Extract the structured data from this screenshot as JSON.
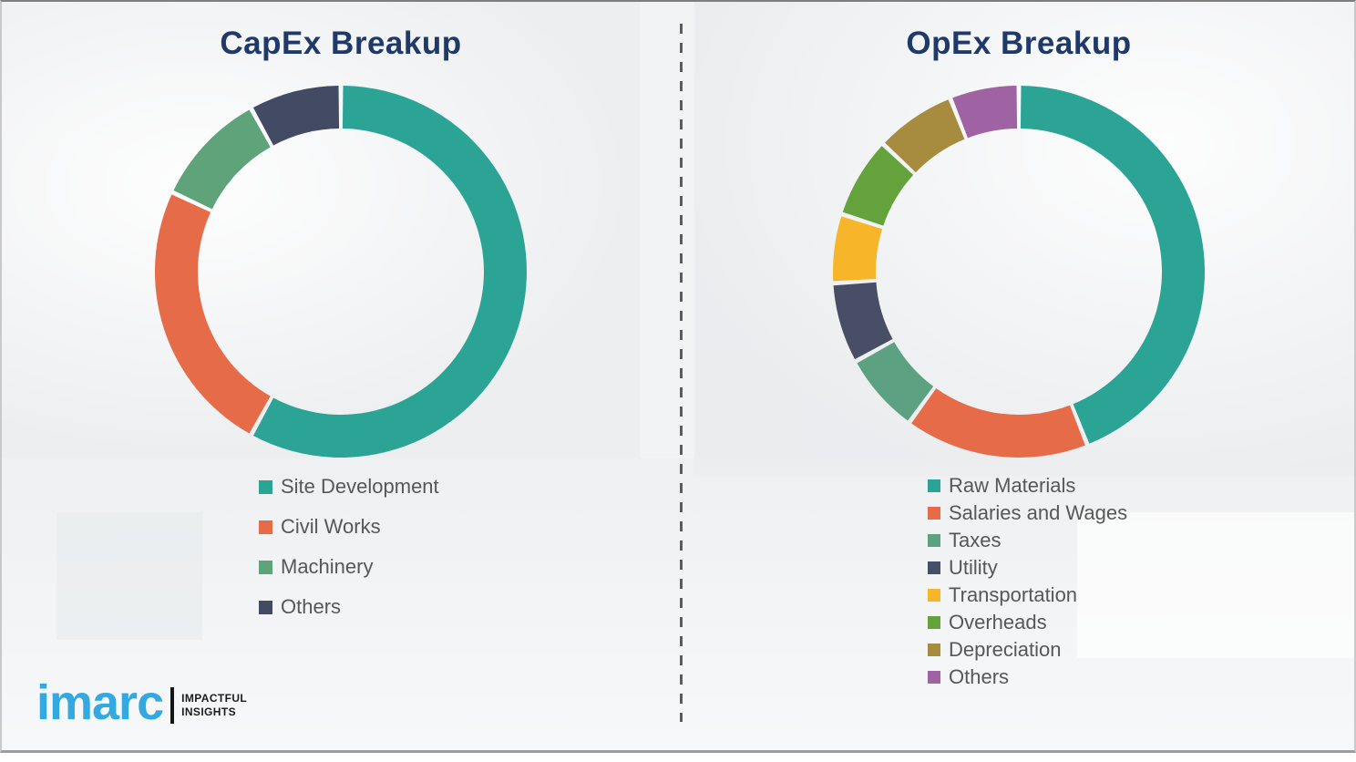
{
  "theme": {
    "title_color": "#1f3a68",
    "legend_text_color": "#575757",
    "divider_color": "#5c5c5c",
    "logo_blue": "#33a9e0"
  },
  "chart_data": [
    {
      "type": "pie",
      "subtype": "donut",
      "title": "CapEx Breakup",
      "legend_position": "bottom-left",
      "series": [
        {
          "name": "Site Development",
          "value": 58,
          "color": "#2ba496"
        },
        {
          "name": "Civil Works",
          "value": 24,
          "color": "#e66b48"
        },
        {
          "name": "Machinery",
          "value": 10,
          "color": "#5ea379"
        },
        {
          "name": "Others",
          "value": 8,
          "color": "#424a64"
        }
      ]
    },
    {
      "type": "pie",
      "subtype": "donut",
      "title": "OpEx Breakup",
      "legend_position": "bottom-left",
      "series": [
        {
          "name": "Raw Materials",
          "value": 44,
          "color": "#2ba496"
        },
        {
          "name": "Salaries and Wages",
          "value": 16,
          "color": "#e66b48"
        },
        {
          "name": "Taxes",
          "value": 7,
          "color": "#5ca181"
        },
        {
          "name": "Utility",
          "value": 7,
          "color": "#474e66"
        },
        {
          "name": "Transportation",
          "value": 6,
          "color": "#f7b62a"
        },
        {
          "name": "Overheads",
          "value": 7,
          "color": "#64a33c"
        },
        {
          "name": "Depreciation",
          "value": 7,
          "color": "#a78b3f"
        },
        {
          "name": "Others",
          "value": 6,
          "color": "#9f62a2"
        }
      ]
    }
  ],
  "footer": {
    "logo_text": "imarc",
    "tagline_line1": "IMPACTFUL",
    "tagline_line2": "INSIGHTS"
  }
}
